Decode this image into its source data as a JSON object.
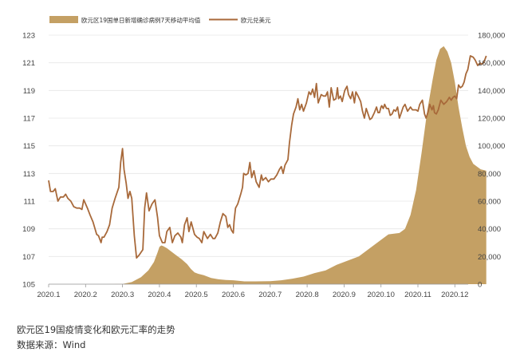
{
  "chart_data": {
    "type": "area+line",
    "title": "",
    "caption": "欧元区19国疫情变化和欧元汇率的走势",
    "source": "数据来源：Wind",
    "legend_position": "top-left",
    "grid": true,
    "x_ticks": [
      "2020.1",
      "2020.2",
      "2020.3",
      "2020.4",
      "2020.5",
      "2020.6",
      "2020.7",
      "2020.8",
      "2020.9",
      "2020.10",
      "2020.11",
      "2020.12"
    ],
    "left_axis": {
      "min": 105,
      "max": 123,
      "ticks": [
        "105",
        "107",
        "109",
        "111",
        "113",
        "115",
        "117",
        "119",
        "121",
        "123"
      ]
    },
    "right_axis": {
      "min": 0,
      "max": 180000,
      "ticks": [
        "0",
        "20,000",
        "40,000",
        "60,000",
        "80,000",
        "100,000",
        "120,000",
        "140,000",
        "160,000",
        "180,000"
      ]
    },
    "series": [
      {
        "name": "欧元区19国单日新增确诊病例7天移动平均值",
        "type": "area",
        "axis": "right",
        "color": "#c4a064",
        "points": [
          [
            0,
            0
          ],
          [
            1.5,
            0
          ],
          [
            2.0,
            200
          ],
          [
            2.25,
            1500
          ],
          [
            2.5,
            5000
          ],
          [
            2.7,
            10000
          ],
          [
            2.85,
            16000
          ],
          [
            2.95,
            23000
          ],
          [
            3.0,
            27000
          ],
          [
            3.05,
            28000
          ],
          [
            3.1,
            27500
          ],
          [
            3.2,
            26000
          ],
          [
            3.3,
            24000
          ],
          [
            3.45,
            21000
          ],
          [
            3.6,
            18000
          ],
          [
            3.75,
            14500
          ],
          [
            3.85,
            11000
          ],
          [
            3.95,
            8500
          ],
          [
            4.05,
            7500
          ],
          [
            4.2,
            6500
          ],
          [
            4.4,
            4500
          ],
          [
            4.6,
            3500
          ],
          [
            4.8,
            3000
          ],
          [
            5.0,
            2800
          ],
          [
            5.3,
            2000
          ],
          [
            5.6,
            2000
          ],
          [
            6.0,
            2200
          ],
          [
            6.3,
            2800
          ],
          [
            6.6,
            4000
          ],
          [
            6.9,
            5500
          ],
          [
            7.2,
            8000
          ],
          [
            7.5,
            10000
          ],
          [
            7.8,
            14000
          ],
          [
            8.1,
            17000
          ],
          [
            8.4,
            20000
          ],
          [
            8.7,
            26000
          ],
          [
            9.0,
            32000
          ],
          [
            9.2,
            36000
          ],
          [
            9.5,
            37000
          ],
          [
            9.65,
            40000
          ],
          [
            9.8,
            50000
          ],
          [
            9.95,
            68000
          ],
          [
            10.1,
            95000
          ],
          [
            10.25,
            125000
          ],
          [
            10.4,
            148000
          ],
          [
            10.5,
            162000
          ],
          [
            10.6,
            170000
          ],
          [
            10.7,
            172000
          ],
          [
            10.8,
            168000
          ],
          [
            10.9,
            160000
          ],
          [
            11.0,
            146000
          ],
          [
            11.1,
            128000
          ],
          [
            11.2,
            113000
          ],
          [
            11.3,
            100000
          ],
          [
            11.4,
            92000
          ],
          [
            11.5,
            87000
          ],
          [
            11.6,
            85000
          ],
          [
            11.7,
            83000
          ],
          [
            11.85,
            82000
          ]
        ]
      },
      {
        "name": "欧元兑美元",
        "type": "line",
        "axis": "left",
        "color": "#a8693a",
        "points": [
          [
            0.0,
            112.5
          ],
          [
            0.05,
            111.7
          ],
          [
            0.12,
            111.7
          ],
          [
            0.18,
            111.9
          ],
          [
            0.25,
            111.0
          ],
          [
            0.32,
            111.3
          ],
          [
            0.4,
            111.3
          ],
          [
            0.46,
            111.5
          ],
          [
            0.52,
            111.2
          ],
          [
            0.6,
            111.0
          ],
          [
            0.68,
            110.6
          ],
          [
            0.76,
            110.5
          ],
          [
            0.84,
            110.5
          ],
          [
            0.9,
            110.4
          ],
          [
            0.95,
            111.1
          ],
          [
            1.0,
            110.8
          ],
          [
            1.05,
            110.5
          ],
          [
            1.12,
            110.0
          ],
          [
            1.2,
            109.5
          ],
          [
            1.3,
            108.6
          ],
          [
            1.35,
            108.5
          ],
          [
            1.42,
            108.0
          ],
          [
            1.45,
            108.4
          ],
          [
            1.5,
            108.4
          ],
          [
            1.58,
            108.8
          ],
          [
            1.65,
            109.3
          ],
          [
            1.72,
            110.5
          ],
          [
            1.8,
            111.2
          ],
          [
            1.9,
            112.0
          ],
          [
            1.95,
            113.8
          ],
          [
            2.0,
            114.8
          ],
          [
            2.04,
            113.3
          ],
          [
            2.1,
            112.3
          ],
          [
            2.15,
            111.2
          ],
          [
            2.2,
            111.7
          ],
          [
            2.25,
            111.2
          ],
          [
            2.32,
            108.5
          ],
          [
            2.38,
            106.9
          ],
          [
            2.45,
            107.1
          ],
          [
            2.55,
            107.5
          ],
          [
            2.6,
            110.5
          ],
          [
            2.65,
            111.6
          ],
          [
            2.72,
            110.3
          ],
          [
            2.8,
            110.8
          ],
          [
            2.88,
            111.1
          ],
          [
            2.95,
            109.8
          ],
          [
            3.0,
            108.5
          ],
          [
            3.08,
            108.0
          ],
          [
            3.15,
            108.0
          ],
          [
            3.2,
            108.8
          ],
          [
            3.28,
            109.1
          ],
          [
            3.35,
            108.0
          ],
          [
            3.42,
            108.5
          ],
          [
            3.5,
            108.7
          ],
          [
            3.58,
            108.4
          ],
          [
            3.62,
            108.0
          ],
          [
            3.68,
            109.3
          ],
          [
            3.75,
            109.8
          ],
          [
            3.8,
            108.8
          ],
          [
            3.86,
            109.5
          ],
          [
            3.95,
            108.6
          ],
          [
            4.02,
            108.4
          ],
          [
            4.08,
            108.3
          ],
          [
            4.15,
            108.0
          ],
          [
            4.2,
            108.8
          ],
          [
            4.3,
            108.3
          ],
          [
            4.38,
            108.6
          ],
          [
            4.45,
            108.3
          ],
          [
            4.5,
            108.3
          ],
          [
            4.58,
            108.7
          ],
          [
            4.65,
            109.5
          ],
          [
            4.72,
            110.1
          ],
          [
            4.8,
            109.9
          ],
          [
            4.85,
            109.1
          ],
          [
            4.9,
            109.3
          ],
          [
            4.95,
            108.9
          ],
          [
            5.0,
            108.7
          ],
          [
            5.02,
            109.5
          ],
          [
            5.06,
            110.5
          ],
          [
            5.12,
            110.8
          ],
          [
            5.2,
            111.5
          ],
          [
            5.25,
            112.0
          ],
          [
            5.28,
            113.0
          ],
          [
            5.34,
            112.9
          ],
          [
            5.4,
            113.0
          ],
          [
            5.45,
            113.8
          ],
          [
            5.5,
            112.7
          ],
          [
            5.56,
            113.2
          ],
          [
            5.62,
            112.4
          ],
          [
            5.7,
            112.0
          ],
          [
            5.76,
            112.9
          ],
          [
            5.8,
            112.5
          ],
          [
            5.88,
            112.7
          ],
          [
            5.95,
            112.4
          ],
          [
            6.02,
            112.6
          ],
          [
            6.1,
            112.6
          ],
          [
            6.18,
            112.9
          ],
          [
            6.25,
            113.3
          ],
          [
            6.3,
            113.5
          ],
          [
            6.35,
            113.0
          ],
          [
            6.4,
            113.6
          ],
          [
            6.48,
            114.0
          ],
          [
            6.52,
            115.2
          ],
          [
            6.58,
            116.5
          ],
          [
            6.63,
            117.3
          ],
          [
            6.7,
            117.8
          ],
          [
            6.75,
            118.4
          ],
          [
            6.8,
            117.6
          ],
          [
            6.85,
            118.0
          ],
          [
            6.9,
            117.5
          ],
          [
            6.98,
            118.1
          ],
          [
            7.05,
            118.9
          ],
          [
            7.1,
            118.7
          ],
          [
            7.15,
            119.1
          ],
          [
            7.2,
            118.5
          ],
          [
            7.25,
            119.5
          ],
          [
            7.3,
            118.1
          ],
          [
            7.38,
            118.7
          ],
          [
            7.44,
            118.6
          ],
          [
            7.5,
            118.6
          ],
          [
            7.55,
            118.9
          ],
          [
            7.6,
            117.8
          ],
          [
            7.65,
            119.2
          ],
          [
            7.72,
            118.3
          ],
          [
            7.78,
            118.4
          ],
          [
            7.82,
            119.2
          ],
          [
            7.85,
            118.4
          ],
          [
            7.9,
            118.6
          ],
          [
            7.95,
            118.2
          ],
          [
            8.0,
            118.8
          ],
          [
            8.02,
            119.0
          ],
          [
            8.08,
            119.3
          ],
          [
            8.12,
            118.7
          ],
          [
            8.18,
            118.4
          ],
          [
            8.23,
            118.9
          ],
          [
            8.28,
            118.1
          ],
          [
            8.32,
            118.9
          ],
          [
            8.38,
            118.6
          ],
          [
            8.45,
            118.2
          ],
          [
            8.5,
            117.5
          ],
          [
            8.55,
            117.0
          ],
          [
            8.6,
            117.7
          ],
          [
            8.65,
            117.3
          ],
          [
            8.7,
            116.9
          ],
          [
            8.75,
            117.0
          ],
          [
            8.82,
            117.4
          ],
          [
            8.88,
            117.8
          ],
          [
            8.92,
            117.4
          ],
          [
            8.96,
            117.4
          ],
          [
            9.0,
            117.8
          ],
          [
            9.02,
            117.9
          ],
          [
            9.06,
            117.7
          ],
          [
            9.1,
            118.0
          ],
          [
            9.15,
            117.7
          ],
          [
            9.2,
            117.7
          ],
          [
            9.25,
            117.2
          ],
          [
            9.3,
            117.3
          ],
          [
            9.35,
            117.6
          ],
          [
            9.4,
            117.5
          ],
          [
            9.45,
            117.8
          ],
          [
            9.5,
            117.0
          ],
          [
            9.55,
            117.4
          ],
          [
            9.6,
            117.8
          ],
          [
            9.65,
            118.0
          ],
          [
            9.72,
            117.5
          ],
          [
            9.8,
            117.8
          ],
          [
            9.85,
            117.6
          ],
          [
            9.9,
            117.6
          ],
          [
            9.95,
            117.6
          ],
          [
            10.0,
            117.5
          ],
          [
            10.05,
            118.0
          ],
          [
            10.12,
            118.3
          ],
          [
            10.18,
            117.3
          ],
          [
            10.22,
            117.0
          ],
          [
            10.28,
            117.5
          ],
          [
            10.32,
            118.0
          ],
          [
            10.38,
            117.6
          ],
          [
            10.42,
            117.9
          ],
          [
            10.45,
            117.4
          ],
          [
            10.5,
            117.3
          ],
          [
            10.55,
            117.6
          ],
          [
            10.62,
            118.3
          ],
          [
            10.7,
            118.0
          ],
          [
            10.78,
            118.2
          ],
          [
            10.85,
            118.5
          ],
          [
            10.9,
            118.3
          ],
          [
            10.95,
            118.5
          ],
          [
            11.0,
            118.6
          ],
          [
            11.05,
            118.4
          ],
          [
            11.1,
            119.4
          ],
          [
            11.15,
            119.2
          ],
          [
            11.2,
            119.3
          ],
          [
            11.25,
            119.6
          ],
          [
            11.3,
            120.2
          ],
          [
            11.35,
            120.5
          ],
          [
            11.42,
            121.5
          ],
          [
            11.5,
            121.4
          ],
          [
            11.55,
            121.2
          ],
          [
            11.62,
            120.8
          ],
          [
            11.68,
            121.0
          ],
          [
            11.72,
            120.9
          ],
          [
            11.78,
            121.0
          ],
          [
            11.85,
            121.5
          ]
        ]
      }
    ]
  }
}
